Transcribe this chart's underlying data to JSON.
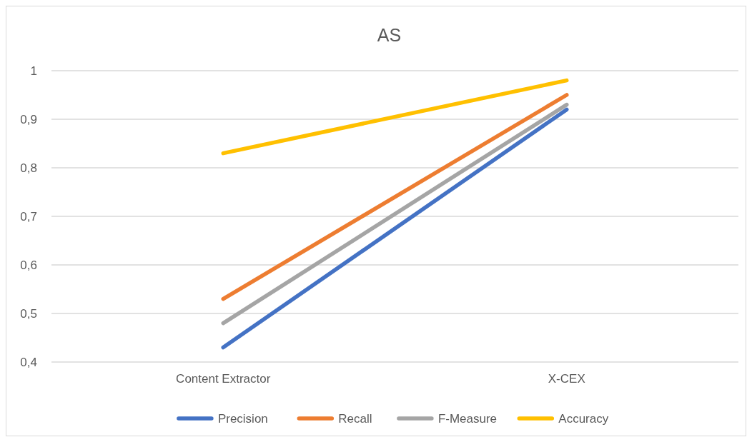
{
  "chart_data": {
    "type": "line",
    "title": "AS",
    "categories": [
      "Content Extractor",
      "X-CEX"
    ],
    "series": [
      {
        "name": "Precision",
        "color": "#4472c4",
        "values": [
          0.43,
          0.92
        ]
      },
      {
        "name": "Recall",
        "color": "#ed7d31",
        "values": [
          0.53,
          0.95
        ]
      },
      {
        "name": "F-Measure",
        "color": "#a5a5a5",
        "values": [
          0.48,
          0.93
        ]
      },
      {
        "name": "Accuracy",
        "color": "#ffc000",
        "values": [
          0.83,
          0.98
        ]
      }
    ],
    "ylim": [
      0.4,
      1
    ],
    "yticks": [
      {
        "value": 0.4,
        "label": "0,4"
      },
      {
        "value": 0.5,
        "label": "0,5"
      },
      {
        "value": 0.6,
        "label": "0,6"
      },
      {
        "value": 0.7,
        "label": "0,7"
      },
      {
        "value": 0.8,
        "label": "0,8"
      },
      {
        "value": 0.9,
        "label": "0,9"
      },
      {
        "value": 1,
        "label": "1"
      }
    ],
    "grid": "y",
    "legend": "bottom"
  }
}
